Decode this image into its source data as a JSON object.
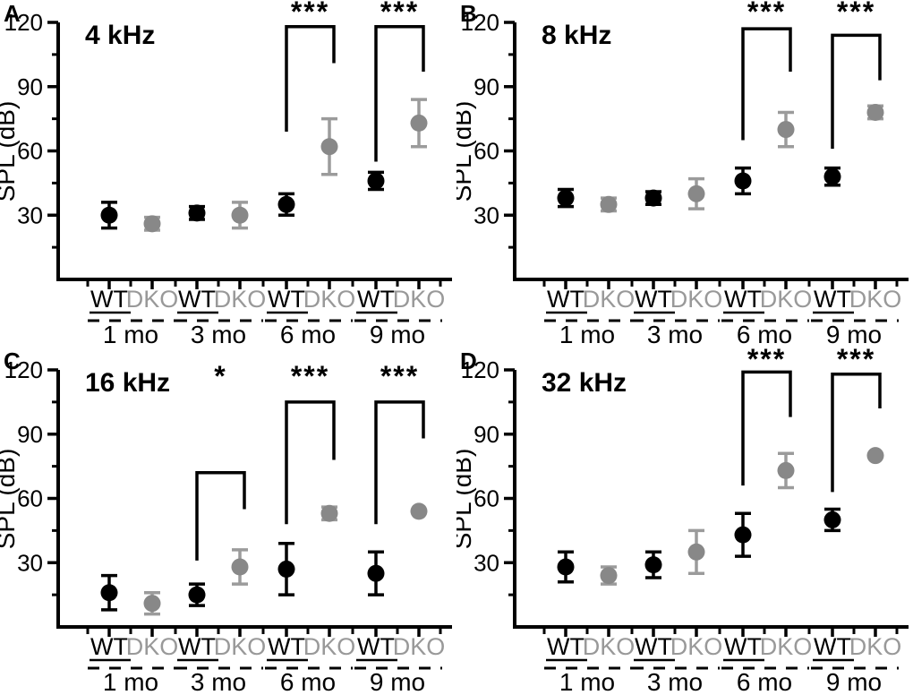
{
  "figure": {
    "background": "#ffffff",
    "y_axis_label": "SPL (dB)",
    "age_groups": [
      "1 mo",
      "3 mo",
      "6 mo",
      "9 mo"
    ],
    "series_legend": [
      {
        "name": "WT",
        "color": "#000000",
        "label_color": "#000000"
      },
      {
        "name": "DKO",
        "color": "#888888",
        "label_color": "#999999",
        "error_color": "#9b9b9b"
      }
    ]
  },
  "chart_data": [
    {
      "panel_letter": "A",
      "type": "scatter",
      "title": "4 kHz",
      "ylabel": "SPL (dB)",
      "ylim": [
        0,
        120
      ],
      "yticks": [
        30,
        60,
        90,
        120
      ],
      "yticks_minor": [
        15,
        45,
        75,
        105
      ],
      "categories": [
        "1 mo",
        "3 mo",
        "6 mo",
        "9 mo"
      ],
      "series": [
        {
          "name": "WT",
          "values": [
            30,
            31,
            35,
            46
          ],
          "errors": [
            6,
            3,
            5,
            4
          ]
        },
        {
          "name": "DKO",
          "values": [
            26,
            30,
            62,
            73
          ],
          "errors": [
            3,
            6,
            13,
            11
          ]
        }
      ],
      "significance": [
        {
          "group": "6 mo",
          "group_index": 2,
          "label": "***",
          "top_db": 118,
          "wt_leg_to_db": 69,
          "dko_leg_to_db": 101,
          "label_db": 125
        },
        {
          "group": "9 mo",
          "group_index": 3,
          "label": "***",
          "top_db": 118,
          "wt_leg_to_db": 55,
          "dko_leg_to_db": 97,
          "label_db": 125
        }
      ]
    },
    {
      "panel_letter": "B",
      "type": "scatter",
      "title": "8 kHz",
      "ylabel": "SPL (dB)",
      "ylim": [
        0,
        120
      ],
      "yticks": [
        30,
        60,
        90,
        120
      ],
      "yticks_minor": [
        15,
        45,
        75,
        105
      ],
      "categories": [
        "1 mo",
        "3 mo",
        "6 mo",
        "9 mo"
      ],
      "series": [
        {
          "name": "WT",
          "values": [
            38,
            38,
            46,
            48
          ],
          "errors": [
            4,
            3,
            6,
            4
          ]
        },
        {
          "name": "DKO",
          "values": [
            35,
            40,
            70,
            78
          ],
          "errors": [
            3,
            7,
            8,
            3
          ]
        }
      ],
      "significance": [
        {
          "group": "6 mo",
          "group_index": 2,
          "label": "***",
          "top_db": 117,
          "wt_leg_to_db": 65,
          "dko_leg_to_db": 97,
          "label_db": 125
        },
        {
          "group": "9 mo",
          "group_index": 3,
          "label": "***",
          "top_db": 114,
          "wt_leg_to_db": 61,
          "dko_leg_to_db": 93,
          "label_db": 125
        }
      ]
    },
    {
      "panel_letter": "C",
      "type": "scatter",
      "title": "16 kHz",
      "ylabel": "SPL (dB)",
      "ylim": [
        0,
        120
      ],
      "yticks": [
        30,
        60,
        90,
        120
      ],
      "yticks_minor": [
        15,
        45,
        75,
        105
      ],
      "categories": [
        "1 mo",
        "3 mo",
        "6 mo",
        "9 mo"
      ],
      "series": [
        {
          "name": "WT",
          "values": [
            16,
            15,
            27,
            25
          ],
          "errors": [
            8,
            5,
            12,
            10
          ]
        },
        {
          "name": "DKO",
          "values": [
            11,
            28,
            53,
            54
          ],
          "errors": [
            5,
            8,
            3,
            0
          ]
        }
      ],
      "significance": [
        {
          "group": "3 mo",
          "group_index": 1,
          "label": "*",
          "top_db": 72,
          "wt_leg_to_db": 31,
          "dko_leg_to_db": 55,
          "label_db": 117
        },
        {
          "group": "6 mo",
          "group_index": 2,
          "label": "***",
          "top_db": 105,
          "wt_leg_to_db": 48,
          "dko_leg_to_db": 78,
          "label_db": 117
        },
        {
          "group": "9 mo",
          "group_index": 3,
          "label": "***",
          "top_db": 105,
          "wt_leg_to_db": 48,
          "dko_leg_to_db": 88,
          "label_db": 117
        }
      ]
    },
    {
      "panel_letter": "D",
      "type": "scatter",
      "title": "32 kHz",
      "ylabel": "SPL (dB)",
      "ylim": [
        0,
        120
      ],
      "yticks": [
        30,
        60,
        90,
        120
      ],
      "yticks_minor": [
        15,
        45,
        75,
        105
      ],
      "categories": [
        "1 mo",
        "3 mo",
        "6 mo",
        "9 mo"
      ],
      "series": [
        {
          "name": "WT",
          "values": [
            28,
            29,
            43,
            50
          ],
          "errors": [
            7,
            6,
            10,
            5
          ]
        },
        {
          "name": "DKO",
          "values": [
            24,
            35,
            73,
            80
          ],
          "errors": [
            4,
            10,
            8,
            0
          ]
        }
      ],
      "significance": [
        {
          "group": "6 mo",
          "group_index": 2,
          "label": "***",
          "top_db": 119,
          "wt_leg_to_db": 66,
          "dko_leg_to_db": 98,
          "label_db": 125
        },
        {
          "group": "9 mo",
          "group_index": 3,
          "label": "***",
          "top_db": 118,
          "wt_leg_to_db": 63,
          "dko_leg_to_db": 102,
          "label_db": 125
        }
      ]
    }
  ]
}
